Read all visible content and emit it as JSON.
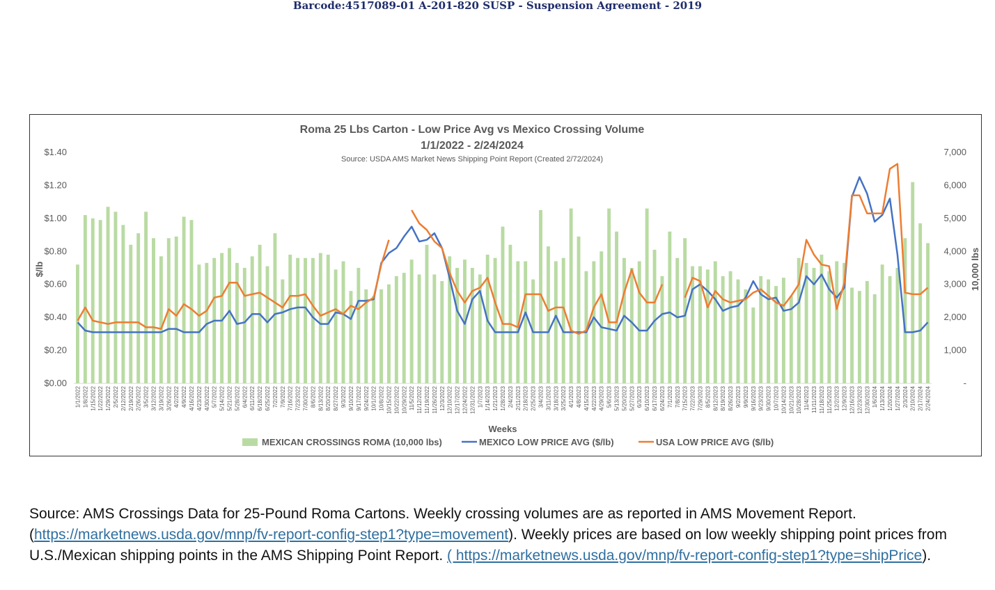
{
  "header": {
    "barcode_text": "Barcode:4517089-01 A-201-820 SUSP - Suspension Agreement  -  2019"
  },
  "caption": {
    "part1": "Source:  AMS Crossings Data for 25-Pound Roma Cartons.  Weekly crossing volumes are as reported in AMS Movement Report. (",
    "link1": "https://marketnews.usda.gov/mnp/fv-report-config-step1?type=movement",
    "part2": ").  Weekly prices are based on low weekly shipping point prices from U.S./Mexican shipping points in the AMS Shipping Point Report.  ",
    "link2": "( https://marketnews.usda.gov/mnp/fv-report-config-step1?type=shipPrice",
    "part3": ")."
  },
  "chart_data": {
    "type": "bar",
    "title": "Roma 25 Lbs Carton - Low Price Avg vs Mexico Crossing Volume",
    "subtitle": "1/1/2022 - 2/24/2024",
    "source_note": "Source: USDA AMS Market News Shipping Point Report (Created 2/72/2024)",
    "xlabel": "Weeks",
    "ylabel": "$/lb",
    "y2label": "10,000 lbs",
    "ylim": [
      0,
      1.4
    ],
    "y2lim": [
      0,
      7000
    ],
    "yticks": [
      "$0.00",
      "$0.20",
      "$0.40",
      "$0.60",
      "$0.80",
      "$1.00",
      "$1.20",
      "$1.40"
    ],
    "y2ticks": [
      "-",
      "1,000",
      "2,000",
      "3,000",
      "4,000",
      "5,000",
      "6,000",
      "7,000"
    ],
    "legend_position": "bottom",
    "categories": [
      "1/1/2022",
      "1/8/2022",
      "1/15/2022",
      "1/22/2022",
      "1/29/2022",
      "2/5/2022",
      "2/12/2022",
      "2/19/2022",
      "2/26/2022",
      "3/5/2022",
      "3/12/2022",
      "3/19/2022",
      "3/26/2022",
      "4/2/2022",
      "4/9/2022",
      "4/16/2022",
      "4/23/2022",
      "4/30/2022",
      "5/7/2022",
      "5/14/2022",
      "5/21/2022",
      "5/28/2022",
      "6/4/2022",
      "6/11/2022",
      "6/18/2022",
      "6/25/2022",
      "7/2/2022",
      "7/9/2022",
      "7/16/2022",
      "7/23/2022",
      "7/30/2022",
      "8/6/2022",
      "8/13/2022",
      "8/20/2022",
      "8/27/2022",
      "9/3/2022",
      "9/10/2022",
      "9/17/2022",
      "9/24/2022",
      "10/1/2022",
      "10/8/2022",
      "10/15/2022",
      "10/22/2022",
      "10/29/2022",
      "11/5/2022",
      "11/12/2022",
      "11/19/2022",
      "11/26/2022",
      "12/3/2022",
      "12/10/2022",
      "12/17/2022",
      "12/24/2022",
      "12/31/2022",
      "1/7/2023",
      "1/14/2023",
      "1/21/2023",
      "1/28/2023",
      "2/4/2023",
      "2/11/2023",
      "2/18/2023",
      "2/25/2023",
      "3/4/2023",
      "3/11/2023",
      "3/18/2023",
      "3/25/2023",
      "4/1/2023",
      "4/8/2023",
      "4/15/2023",
      "4/22/2023",
      "4/29/2023",
      "5/6/2023",
      "5/13/2023",
      "5/20/2023",
      "5/27/2023",
      "6/3/2023",
      "6/10/2023",
      "6/17/2023",
      "6/24/2023",
      "7/1/2023",
      "7/8/2023",
      "7/15/2023",
      "7/22/2023",
      "7/29/2023",
      "8/5/2023",
      "8/12/2023",
      "8/19/2023",
      "8/26/2023",
      "9/2/2023",
      "9/9/2023",
      "9/16/2023",
      "9/23/2023",
      "9/30/2023",
      "10/7/2023",
      "10/14/2023",
      "10/21/2023",
      "10/28/2023",
      "11/4/2023",
      "11/11/2023",
      "11/18/2023",
      "11/25/2023",
      "12/2/2023",
      "12/9/2023",
      "12/16/2023",
      "12/23/2023",
      "12/30/2023",
      "1/6/2024",
      "1/13/2024",
      "1/20/2024",
      "1/27/2024",
      "2/3/2024",
      "2/10/2024",
      "2/17/2024",
      "2/24/2024"
    ],
    "tick_every": 1,
    "series": [
      {
        "name": "MEXICAN CROSSINGS ROMA (10,000 lbs)",
        "kind": "bar",
        "axis": "right",
        "color": "#b9dba3",
        "values": [
          3600,
          5100,
          5000,
          4950,
          5350,
          5200,
          4800,
          4200,
          4550,
          5200,
          4400,
          3850,
          4400,
          4450,
          5050,
          4950,
          3600,
          3650,
          3800,
          3950,
          4100,
          3650,
          3500,
          3850,
          4200,
          3550,
          4550,
          3150,
          3900,
          3800,
          3800,
          3800,
          3950,
          3900,
          3450,
          3700,
          2800,
          3500,
          2850,
          2650,
          2850,
          3000,
          3250,
          3350,
          3750,
          3300,
          4200,
          3300,
          3100,
          3850,
          3500,
          3750,
          3500,
          3300,
          3900,
          3800,
          4750,
          4200,
          3700,
          3700,
          3150,
          5250,
          4150,
          3700,
          3800,
          5300,
          4450,
          3400,
          3700,
          4000,
          5300,
          4600,
          3800,
          3500,
          3700,
          5300,
          4050,
          3250,
          4600,
          3800,
          4400,
          3550,
          3550,
          3450,
          3700,
          3250,
          3400,
          3150,
          2850,
          2300,
          3250,
          3150,
          2950,
          3200,
          2650,
          3800,
          3650,
          3500,
          3900,
          3400,
          3700,
          3650,
          2900,
          2800,
          3100,
          2700,
          3600,
          3250,
          3500,
          4400,
          6100,
          4850,
          4250
        ]
      },
      {
        "name": "MEXICO LOW PRICE AVG ($/lb)",
        "kind": "line",
        "axis": "left",
        "color": "#4472c4",
        "values": [
          0.37,
          0.32,
          0.31,
          0.31,
          0.31,
          0.31,
          0.31,
          0.31,
          0.31,
          0.31,
          0.31,
          0.31,
          0.33,
          0.33,
          0.31,
          0.31,
          0.31,
          0.36,
          0.38,
          0.38,
          0.44,
          0.36,
          0.37,
          0.42,
          0.42,
          0.37,
          0.42,
          0.43,
          0.45,
          0.46,
          0.46,
          0.4,
          0.36,
          0.36,
          0.43,
          0.42,
          0.39,
          0.5,
          0.5,
          0.51,
          0.73,
          0.79,
          0.82,
          0.89,
          0.95,
          0.86,
          0.87,
          0.91,
          0.82,
          0.64,
          0.44,
          0.36,
          0.51,
          0.56,
          0.38,
          0.31,
          0.31,
          0.31,
          0.31,
          0.43,
          0.31,
          0.31,
          0.31,
          0.41,
          0.31,
          0.31,
          0.31,
          0.31,
          0.4,
          0.34,
          0.33,
          0.32,
          0.41,
          0.37,
          0.32,
          0.32,
          0.38,
          0.42,
          0.43,
          0.4,
          0.41,
          0.57,
          0.6,
          0.56,
          0.51,
          0.44,
          0.46,
          0.47,
          0.52,
          0.62,
          0.54,
          0.51,
          0.52,
          0.44,
          0.45,
          0.49,
          0.65,
          0.6,
          0.66,
          0.57,
          0.52,
          0.58,
          1.13,
          1.25,
          1.15,
          0.98,
          1.02,
          1.12,
          0.78,
          0.31,
          0.31,
          0.32,
          0.37
        ]
      },
      {
        "name": "USA LOW PRICE AVG ($/lb)",
        "kind": "line",
        "axis": "left",
        "color": "#ed7d31",
        "values": [
          0.38,
          0.46,
          0.38,
          0.37,
          0.36,
          0.37,
          0.37,
          0.37,
          0.37,
          0.34,
          0.34,
          0.33,
          0.45,
          0.41,
          0.48,
          0.45,
          0.41,
          0.44,
          0.52,
          0.53,
          0.61,
          0.61,
          0.53,
          0.54,
          0.55,
          0.52,
          0.49,
          0.46,
          0.53,
          0.53,
          0.54,
          0.47,
          0.41,
          0.43,
          0.45,
          0.42,
          0.47,
          0.45,
          0.49,
          0.52,
          0.72,
          0.87,
          null,
          null,
          1.05,
          0.97,
          0.93,
          0.86,
          0.82,
          0.67,
          0.56,
          0.49,
          0.56,
          0.58,
          0.64,
          0.49,
          0.36,
          0.36,
          0.34,
          0.54,
          0.54,
          0.54,
          0.44,
          0.46,
          0.46,
          0.32,
          0.3,
          0.32,
          0.46,
          0.54,
          0.37,
          0.37,
          0.55,
          0.69,
          0.55,
          0.49,
          0.49,
          0.6,
          null,
          null,
          0.52,
          0.64,
          0.62,
          0.46,
          0.56,
          0.51,
          0.49,
          0.5,
          0.51,
          0.55,
          0.57,
          0.53,
          0.49,
          0.47,
          0.53,
          0.6,
          0.87,
          0.78,
          0.72,
          0.71,
          0.45,
          0.61,
          1.14,
          1.14,
          1.03,
          1.03,
          1.03,
          1.3,
          1.33,
          0.55,
          0.54,
          0.54,
          0.58
        ]
      }
    ]
  }
}
